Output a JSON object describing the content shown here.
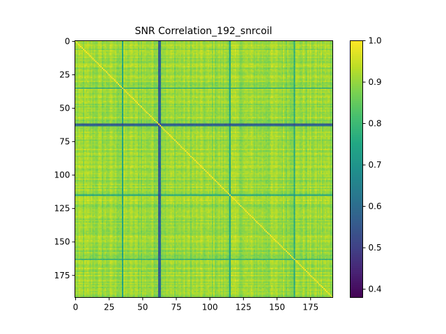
{
  "chart_data": {
    "type": "heatmap",
    "title": "SNR Correlation_192_snrcoil",
    "xlabel": "",
    "ylabel": "",
    "size": 192,
    "xlim": [
      0,
      192
    ],
    "ylim": [
      192,
      0
    ],
    "x_ticks": [
      "0",
      "25",
      "50",
      "75",
      "100",
      "125",
      "150",
      "175"
    ],
    "y_ticks": [
      "0",
      "25",
      "50",
      "75",
      "100",
      "125",
      "150",
      "175"
    ],
    "tick_values": [
      0,
      25,
      50,
      75,
      100,
      125,
      150,
      175
    ],
    "colormap": "viridis",
    "colorbar": {
      "min": 0.38,
      "max": 1.0,
      "ticks": [
        "1.0",
        "0.9",
        "0.8",
        "0.7",
        "0.6",
        "0.5",
        "0.4"
      ],
      "tick_values": [
        1.0,
        0.9,
        0.8,
        0.7,
        0.6,
        0.5,
        0.4
      ]
    },
    "diagonal_value": 1.0,
    "typical_off_diagonal_range": [
      0.85,
      0.96
    ],
    "low_correlation_indices": [
      {
        "index": 35,
        "value": 0.75
      },
      {
        "index": 62,
        "value": 0.55
      },
      {
        "index": 63,
        "value": 0.6
      },
      {
        "index": 115,
        "value": 0.74
      },
      {
        "index": 163,
        "value": 0.76
      }
    ],
    "grid": false,
    "legend": "colorbar-right"
  }
}
